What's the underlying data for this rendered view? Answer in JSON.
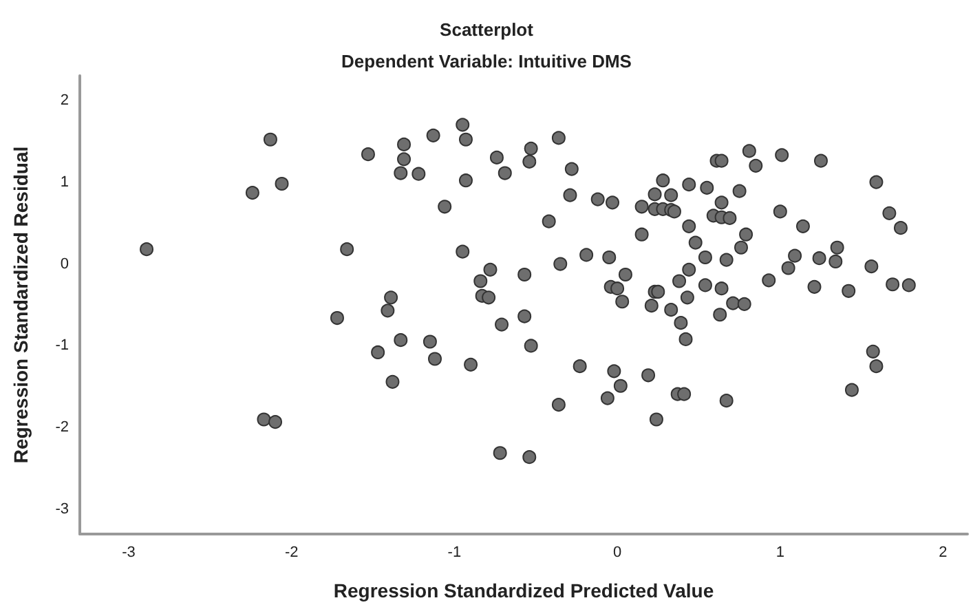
{
  "chart_data": {
    "type": "scatter",
    "title": "Scatterplot",
    "subtitle": "Dependent Variable: Intuitive DMS",
    "xlabel": "Regression Standardized Predicted Value",
    "ylabel": "Regression Standardized Residual",
    "xlim": [
      -3.3,
      2.15
    ],
    "ylim": [
      -3.3,
      2.3
    ],
    "xticks": [
      -3,
      -2,
      -1,
      0,
      1,
      2
    ],
    "yticks": [
      -3,
      -2,
      -1,
      0,
      1,
      2
    ],
    "grid": false,
    "marker": "circle",
    "series": [
      {
        "color": "#6e6e6e",
        "x": [
          -2.89,
          -2.13,
          -2.24,
          -2.06,
          -2.17,
          -2.1,
          -1.66,
          -1.53,
          -1.31,
          -1.31,
          -1.33,
          -1.39,
          -1.41,
          -1.72,
          -1.33,
          -1.47,
          -1.38,
          -1.13,
          -0.95,
          -0.93,
          -1.22,
          -0.93,
          -1.06,
          -0.74,
          -0.69,
          -0.53,
          -0.54,
          -0.36,
          -0.28,
          -0.29,
          -0.12,
          -0.03,
          -0.42,
          -0.95,
          -0.78,
          -0.84,
          -0.83,
          -0.79,
          -0.57,
          -0.35,
          -0.19,
          -0.05,
          0.05,
          -0.04,
          0.0,
          0.03,
          -0.57,
          -0.71,
          0.15,
          0.23,
          0.28,
          0.33,
          0.44,
          0.23,
          0.28,
          0.33,
          0.35,
          0.15,
          0.44,
          0.48,
          0.44,
          0.38,
          0.43,
          0.23,
          0.25,
          0.21,
          0.33,
          0.39,
          0.81,
          0.61,
          0.64,
          0.85,
          1.01,
          1.25,
          0.55,
          0.75,
          0.64,
          0.59,
          0.64,
          0.69,
          0.79,
          0.76,
          0.54,
          0.67,
          1.0,
          1.14,
          1.59,
          1.67,
          1.74,
          1.35,
          1.09,
          1.24,
          1.34,
          1.05,
          1.56,
          0.93,
          1.21,
          1.42,
          1.69,
          1.79,
          0.54,
          0.64,
          0.71,
          0.78,
          0.63,
          0.42,
          1.57,
          1.59,
          1.44,
          0.67,
          -1.15,
          -1.12,
          -0.9,
          -0.53,
          -0.23,
          -0.36,
          -0.72,
          -0.54,
          -0.02,
          0.02,
          -0.06,
          0.19,
          0.24,
          0.37,
          0.41
        ],
        "values": [
          0.18,
          1.52,
          0.87,
          0.98,
          -1.9,
          -1.93,
          0.18,
          1.34,
          1.46,
          1.28,
          1.11,
          -0.41,
          -0.57,
          -0.66,
          -0.93,
          -1.08,
          -1.44,
          1.57,
          1.7,
          1.52,
          1.1,
          1.02,
          0.7,
          1.3,
          1.11,
          1.41,
          1.25,
          1.54,
          1.16,
          0.84,
          0.79,
          0.75,
          0.52,
          0.15,
          -0.07,
          -0.21,
          -0.39,
          -0.41,
          -0.13,
          0.0,
          0.11,
          0.08,
          -0.13,
          -0.28,
          -0.3,
          -0.46,
          -0.64,
          -0.74,
          0.7,
          0.85,
          1.02,
          0.84,
          0.97,
          0.67,
          0.67,
          0.66,
          0.64,
          0.36,
          0.46,
          0.26,
          -0.07,
          -0.21,
          -0.41,
          -0.34,
          -0.34,
          -0.51,
          -0.56,
          -0.72,
          1.38,
          1.26,
          1.26,
          1.2,
          1.33,
          1.26,
          0.93,
          0.89,
          0.75,
          0.59,
          0.57,
          0.56,
          0.36,
          0.2,
          0.08,
          0.05,
          0.64,
          0.46,
          1.0,
          0.62,
          0.44,
          0.2,
          0.1,
          0.07,
          0.03,
          -0.05,
          -0.03,
          -0.2,
          -0.28,
          -0.33,
          -0.25,
          -0.26,
          -0.26,
          -0.3,
          -0.48,
          -0.49,
          -0.62,
          -0.92,
          -1.07,
          -1.25,
          -1.54,
          -1.67,
          -0.95,
          -1.16,
          -1.23,
          -1.0,
          -1.25,
          -1.72,
          -2.31,
          -2.36,
          -1.31,
          -1.49,
          -1.64,
          -1.36,
          -1.9,
          -1.59,
          -1.59
        ]
      }
    ]
  }
}
